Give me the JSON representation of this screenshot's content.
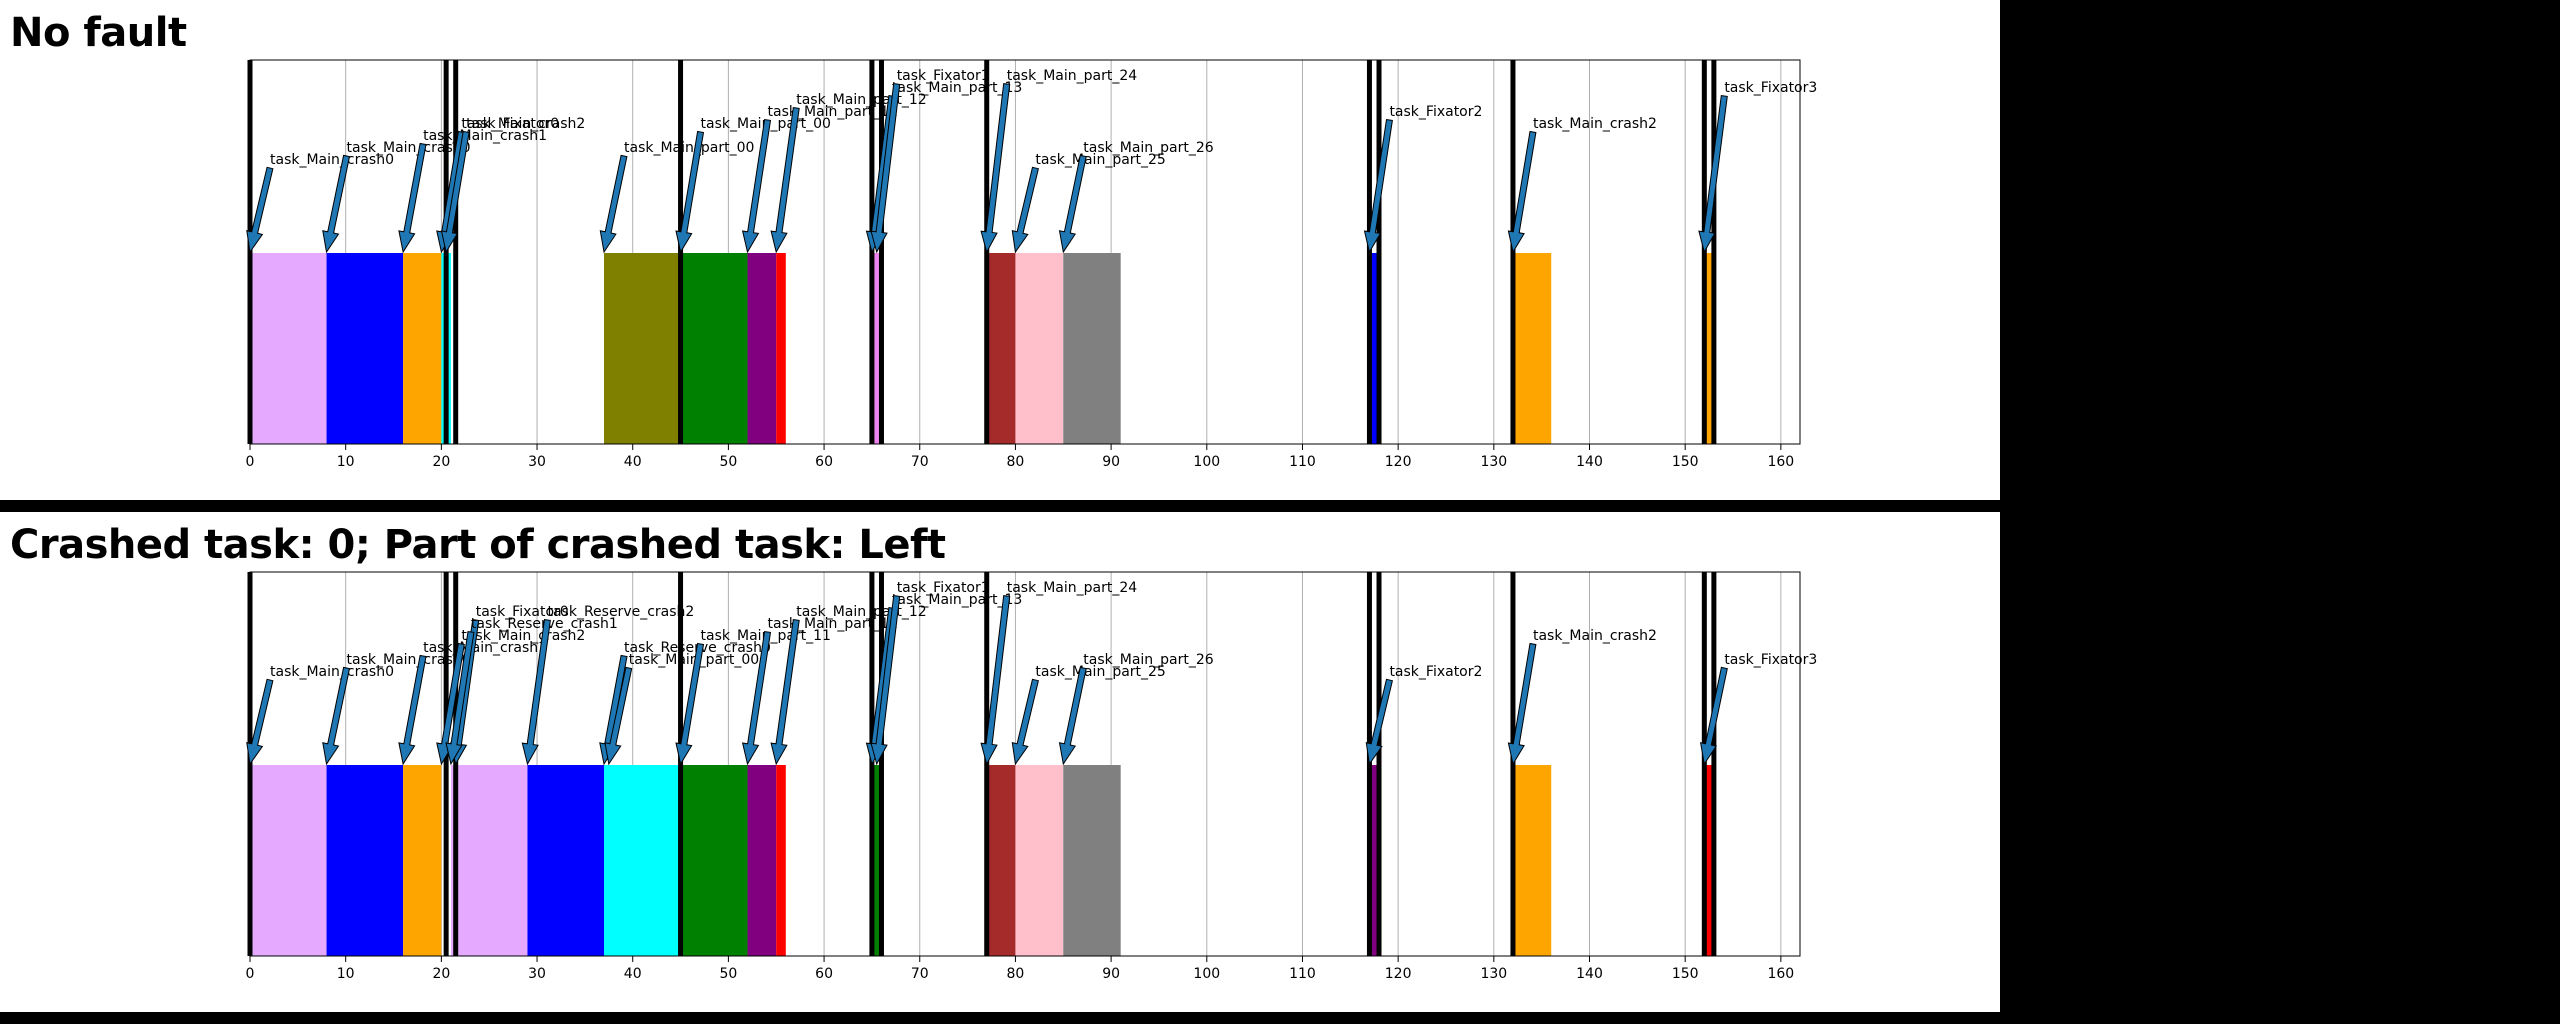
{
  "chart_data": [
    {
      "type": "gantt",
      "title": "No fault",
      "xlim": [
        0,
        162
      ],
      "xticks": [
        0,
        10,
        20,
        30,
        40,
        50,
        60,
        70,
        80,
        90,
        100,
        110,
        120,
        130,
        140,
        150,
        160
      ],
      "grid": "vertical",
      "boundaries": [
        0,
        20.5,
        21.5,
        45,
        65,
        66,
        77,
        117,
        118,
        132,
        152,
        153
      ],
      "bars": [
        {
          "start": 0,
          "end": 8,
          "color": "#e5aaff"
        },
        {
          "start": 8,
          "end": 16,
          "color": "#0000ff"
        },
        {
          "start": 16,
          "end": 20,
          "color": "#ffa500"
        },
        {
          "start": 20,
          "end": 21,
          "color": "#00ffff"
        },
        {
          "start": 37,
          "end": 45,
          "color": "#808000"
        },
        {
          "start": 45,
          "end": 52,
          "color": "#008000"
        },
        {
          "start": 52,
          "end": 55,
          "color": "#800080"
        },
        {
          "start": 55,
          "end": 56,
          "color": "#ff0000"
        },
        {
          "start": 65,
          "end": 66,
          "color": "#ee82ee"
        },
        {
          "start": 77,
          "end": 80,
          "color": "#a52a2a"
        },
        {
          "start": 80,
          "end": 85,
          "color": "#ffc0cb"
        },
        {
          "start": 85,
          "end": 91,
          "color": "#808080"
        },
        {
          "start": 117,
          "end": 118,
          "color": "#0000ff"
        },
        {
          "start": 132,
          "end": 136,
          "color": "#ffa500"
        },
        {
          "start": 152,
          "end": 153,
          "color": "#ffa500"
        }
      ],
      "annotations": [
        {
          "x": 0,
          "label": "task_Main_crash0",
          "level": 1
        },
        {
          "x": 8,
          "label": "task_Main_crash0",
          "level": 2
        },
        {
          "x": 16,
          "label": "task_Main_crash1",
          "level": 3
        },
        {
          "x": 20,
          "label": "task_Main_crash2",
          "level": 4
        },
        {
          "x": 20.5,
          "label": "task_Fixator0",
          "level": 4
        },
        {
          "x": 37,
          "label": "task_Main_part_00",
          "level": 2
        },
        {
          "x": 45,
          "label": "task_Main_part_00",
          "level": 4
        },
        {
          "x": 52,
          "label": "task_Main_part_11",
          "level": 5
        },
        {
          "x": 55,
          "label": "task_Main_part_12",
          "level": 6
        },
        {
          "x": 65,
          "label": "task_Main_part_13",
          "level": 7
        },
        {
          "x": 65.5,
          "label": "task_Fixator1",
          "level": 8
        },
        {
          "x": 77,
          "label": "task_Main_part_24",
          "level": 8
        },
        {
          "x": 80,
          "label": "task_Main_part_25",
          "level": 1
        },
        {
          "x": 85,
          "label": "task_Main_part_26",
          "level": 2
        },
        {
          "x": 117,
          "label": "task_Fixator2",
          "level": 5
        },
        {
          "x": 132,
          "label": "task_Main_crash2",
          "level": 4
        },
        {
          "x": 152,
          "label": "task_Fixator3",
          "level": 7
        }
      ]
    },
    {
      "type": "gantt",
      "title": "Crashed task: 0; Part of crashed task: Left",
      "xlim": [
        0,
        162
      ],
      "xticks": [
        0,
        10,
        20,
        30,
        40,
        50,
        60,
        70,
        80,
        90,
        100,
        110,
        120,
        130,
        140,
        150,
        160
      ],
      "grid": "vertical",
      "boundaries": [
        0,
        20.5,
        21.5,
        45,
        65,
        66,
        77,
        117,
        118,
        132,
        152,
        153
      ],
      "bars": [
        {
          "start": 0,
          "end": 8,
          "color": "#e5aaff"
        },
        {
          "start": 8,
          "end": 16,
          "color": "#0000ff"
        },
        {
          "start": 16,
          "end": 20,
          "color": "#ffa500"
        },
        {
          "start": 21,
          "end": 29,
          "color": "#e5aaff"
        },
        {
          "start": 29,
          "end": 37,
          "color": "#0000ff"
        },
        {
          "start": 37,
          "end": 45,
          "color": "#00ffff"
        },
        {
          "start": 45,
          "end": 52,
          "color": "#008000"
        },
        {
          "start": 52,
          "end": 55,
          "color": "#800080"
        },
        {
          "start": 55,
          "end": 56,
          "color": "#ff0000"
        },
        {
          "start": 65,
          "end": 66,
          "color": "#008000"
        },
        {
          "start": 77,
          "end": 80,
          "color": "#a52a2a"
        },
        {
          "start": 80,
          "end": 85,
          "color": "#ffc0cb"
        },
        {
          "start": 85,
          "end": 91,
          "color": "#808080"
        },
        {
          "start": 117,
          "end": 118,
          "color": "#800080"
        },
        {
          "start": 132,
          "end": 136,
          "color": "#ffa500"
        },
        {
          "start": 152,
          "end": 153,
          "color": "#ff0000"
        }
      ],
      "annotations": [
        {
          "x": 0,
          "label": "task_Main_crash0",
          "level": 1
        },
        {
          "x": 8,
          "label": "task_Main_crash0",
          "level": 2
        },
        {
          "x": 16,
          "label": "task_Main_crash1",
          "level": 3
        },
        {
          "x": 20,
          "label": "task_Main_crash2",
          "level": 4
        },
        {
          "x": 21.5,
          "label": "task_Fixator0",
          "level": 6
        },
        {
          "x": 21,
          "label": "task_Reserve_crash1",
          "level": 5
        },
        {
          "x": 29,
          "label": "task_Reserve_crash2",
          "level": 6
        },
        {
          "x": 37,
          "label": "task_Reserve_crash0",
          "level": 3
        },
        {
          "x": 37.5,
          "label": "task_Main_part_00",
          "level": 2
        },
        {
          "x": 45,
          "label": "task_Main_part_11",
          "level": 4
        },
        {
          "x": 52,
          "label": "task_Main_part_11",
          "level": 5
        },
        {
          "x": 55,
          "label": "task_Main_part_12",
          "level": 6
        },
        {
          "x": 65,
          "label": "task_Main_part_13",
          "level": 7
        },
        {
          "x": 65.5,
          "label": "task_Fixator1",
          "level": 8
        },
        {
          "x": 77,
          "label": "task_Main_part_24",
          "level": 8
        },
        {
          "x": 80,
          "label": "task_Main_part_25",
          "level": 1
        },
        {
          "x": 85,
          "label": "task_Main_part_26",
          "level": 2
        },
        {
          "x": 117,
          "label": "task_Fixator2",
          "level": 1
        },
        {
          "x": 132,
          "label": "task_Main_crash2",
          "level": 4
        },
        {
          "x": 152,
          "label": "task_Fixator3",
          "level": 2
        }
      ]
    }
  ]
}
